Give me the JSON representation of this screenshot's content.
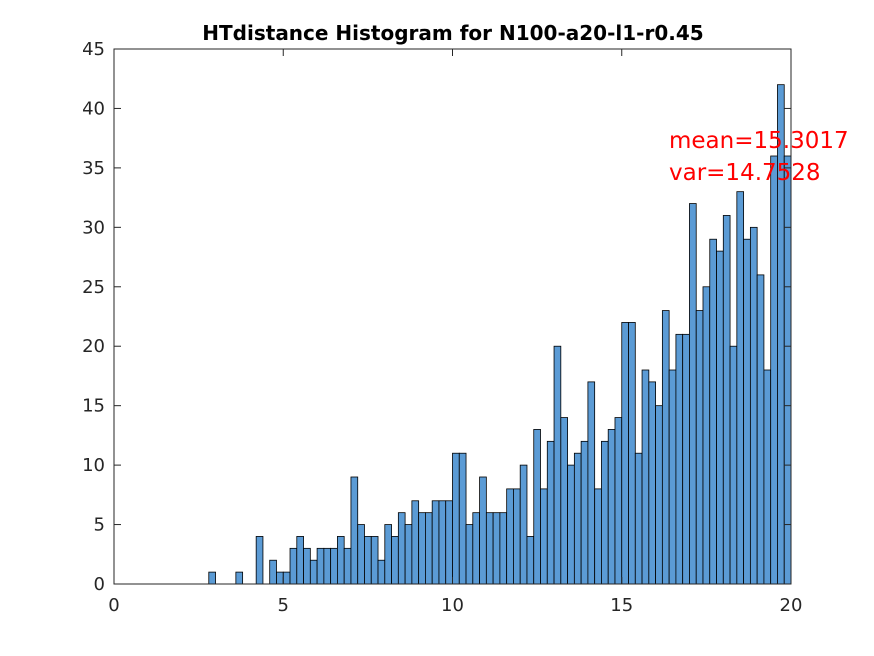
{
  "chart_data": {
    "type": "histogram",
    "title": "HTdistance Histogram for N100-a20-l1-r0.45",
    "xlabel": "",
    "ylabel": "",
    "xlim": [
      0,
      20
    ],
    "ylim": [
      0,
      45
    ],
    "xticks": [
      "0",
      "5",
      "10",
      "15",
      "20"
    ],
    "yticks": [
      "0",
      "5",
      "10",
      "15",
      "20",
      "25",
      "30",
      "35",
      "40",
      "45"
    ],
    "bin_start": 0,
    "bin_width": 0.2,
    "bar_color": "#5B9BD5",
    "edge_color": "#000000",
    "counts": [
      0,
      0,
      0,
      0,
      0,
      0,
      0,
      0,
      0,
      0,
      0,
      0,
      0,
      0,
      1,
      0,
      0,
      0,
      1,
      0,
      0,
      4,
      0,
      2,
      1,
      1,
      3,
      4,
      3,
      2,
      3,
      3,
      3,
      4,
      3,
      9,
      5,
      4,
      4,
      2,
      5,
      4,
      6,
      5,
      7,
      6,
      6,
      7,
      7,
      7,
      11,
      11,
      5,
      6,
      9,
      6,
      6,
      6,
      8,
      8,
      10,
      4,
      13,
      8,
      12,
      20,
      14,
      10,
      11,
      12,
      17,
      8,
      12,
      13,
      14,
      22,
      22,
      11,
      18,
      17,
      15,
      23,
      18,
      21,
      21,
      32,
      23,
      25,
      29,
      28,
      31,
      20,
      33,
      29,
      30,
      26,
      18,
      36,
      42,
      36
    ],
    "annotations": [
      "mean=15.3017",
      "var=14.7528"
    ],
    "annotation_color": "#ff0000",
    "grid": false,
    "legend": "none"
  }
}
